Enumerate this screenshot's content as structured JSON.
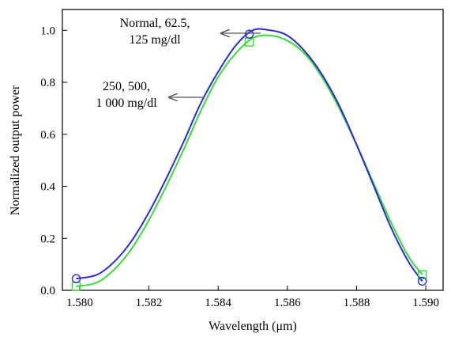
{
  "chart_data": {
    "type": "line",
    "title": "",
    "xlabel": "Wavelength (μm)",
    "ylabel": "Normalized output power",
    "xlim": [
      1.5795,
      1.5905
    ],
    "ylim": [
      0.0,
      1.08
    ],
    "x_ticks": [
      1.58,
      1.582,
      1.584,
      1.586,
      1.588,
      1.59
    ],
    "x_tick_labels": [
      "1.580",
      "1.582",
      "1.584",
      "1.586",
      "1.588",
      "1.590"
    ],
    "y_ticks": [
      0.0,
      0.2,
      0.4,
      0.6,
      0.8,
      1.0
    ],
    "y_tick_labels": [
      "0.0",
      "0.2",
      "0.4",
      "0.6",
      "0.8",
      "1.0"
    ],
    "grid": false,
    "series": [
      {
        "color": "#2b2bd6",
        "marker": "circle",
        "marker_points": [
          [
            1.5799,
            0.045
          ],
          [
            1.5849,
            0.985
          ],
          [
            1.5899,
            0.035
          ]
        ],
        "x": [
          1.5799,
          1.5805,
          1.581,
          1.5815,
          1.582,
          1.5825,
          1.583,
          1.5835,
          1.584,
          1.5845,
          1.585,
          1.5855,
          1.586,
          1.5865,
          1.587,
          1.5875,
          1.588,
          1.5885,
          1.589,
          1.5895,
          1.5899
        ],
        "y": [
          0.045,
          0.06,
          0.11,
          0.19,
          0.3,
          0.43,
          0.57,
          0.72,
          0.84,
          0.94,
          1.0,
          1.0,
          0.98,
          0.92,
          0.83,
          0.71,
          0.56,
          0.4,
          0.24,
          0.11,
          0.035
        ]
      },
      {
        "color": "#33dd33",
        "marker": "square",
        "marker_points": [
          [
            1.5799,
            0.015
          ],
          [
            1.5849,
            0.955
          ],
          [
            1.5899,
            0.06
          ]
        ],
        "x": [
          1.5799,
          1.5805,
          1.581,
          1.5815,
          1.582,
          1.5825,
          1.583,
          1.5835,
          1.584,
          1.5845,
          1.585,
          1.5855,
          1.586,
          1.5865,
          1.587,
          1.5875,
          1.588,
          1.5885,
          1.589,
          1.5895,
          1.5899
        ],
        "y": [
          0.015,
          0.03,
          0.08,
          0.16,
          0.27,
          0.4,
          0.54,
          0.69,
          0.82,
          0.91,
          0.97,
          0.98,
          0.96,
          0.91,
          0.82,
          0.7,
          0.56,
          0.41,
          0.26,
          0.13,
          0.06
        ]
      }
    ],
    "annotations": [
      {
        "lines": [
          "Normal, 62.5,",
          "125 mg/dl"
        ],
        "arrow_to": [
          1.5849,
          1.0
        ]
      },
      {
        "lines": [
          "250, 500,",
          "1 000 mg/dl"
        ],
        "arrow_to": [
          1.5835,
          0.75
        ]
      }
    ]
  }
}
